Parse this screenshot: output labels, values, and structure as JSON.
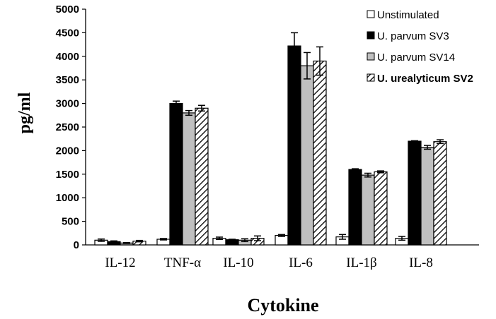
{
  "chart_data": {
    "type": "bar",
    "title": "",
    "xlabel": "Cytokine",
    "ylabel": "pg/ml",
    "ylim": [
      0,
      5000
    ],
    "yticks": [
      0,
      500,
      1000,
      1500,
      2000,
      2500,
      3000,
      3500,
      4000,
      4500,
      5000
    ],
    "grid": false,
    "legend_position": "top-right",
    "categories": [
      "IL-12",
      "TNF-α",
      "IL-10",
      "IL-6",
      "IL-1β",
      "IL-8"
    ],
    "series": [
      {
        "name": "Unstimulated",
        "fill": "#ffffff",
        "pattern": "none",
        "values": [
          100,
          120,
          140,
          200,
          170,
          140
        ],
        "errors": [
          25,
          15,
          25,
          20,
          50,
          40
        ]
      },
      {
        "name": "U. parvum SV3",
        "fill": "#000000",
        "pattern": "none",
        "values": [
          70,
          3000,
          110,
          4220,
          1600,
          2200
        ],
        "errors": [
          15,
          50,
          10,
          280,
          15,
          10
        ]
      },
      {
        "name": "U. parvum SV14",
        "fill": "#c0c0c0",
        "pattern": "none",
        "values": [
          40,
          2800,
          100,
          3800,
          1480,
          2070
        ],
        "errors": [
          10,
          50,
          30,
          280,
          40,
          40
        ]
      },
      {
        "name": "U. urealyticum SV2",
        "fill": "#ffffff",
        "pattern": "diagonal-hatch",
        "values": [
          80,
          2900,
          140,
          3900,
          1550,
          2190
        ],
        "errors": [
          15,
          60,
          50,
          300,
          20,
          40
        ]
      }
    ]
  }
}
